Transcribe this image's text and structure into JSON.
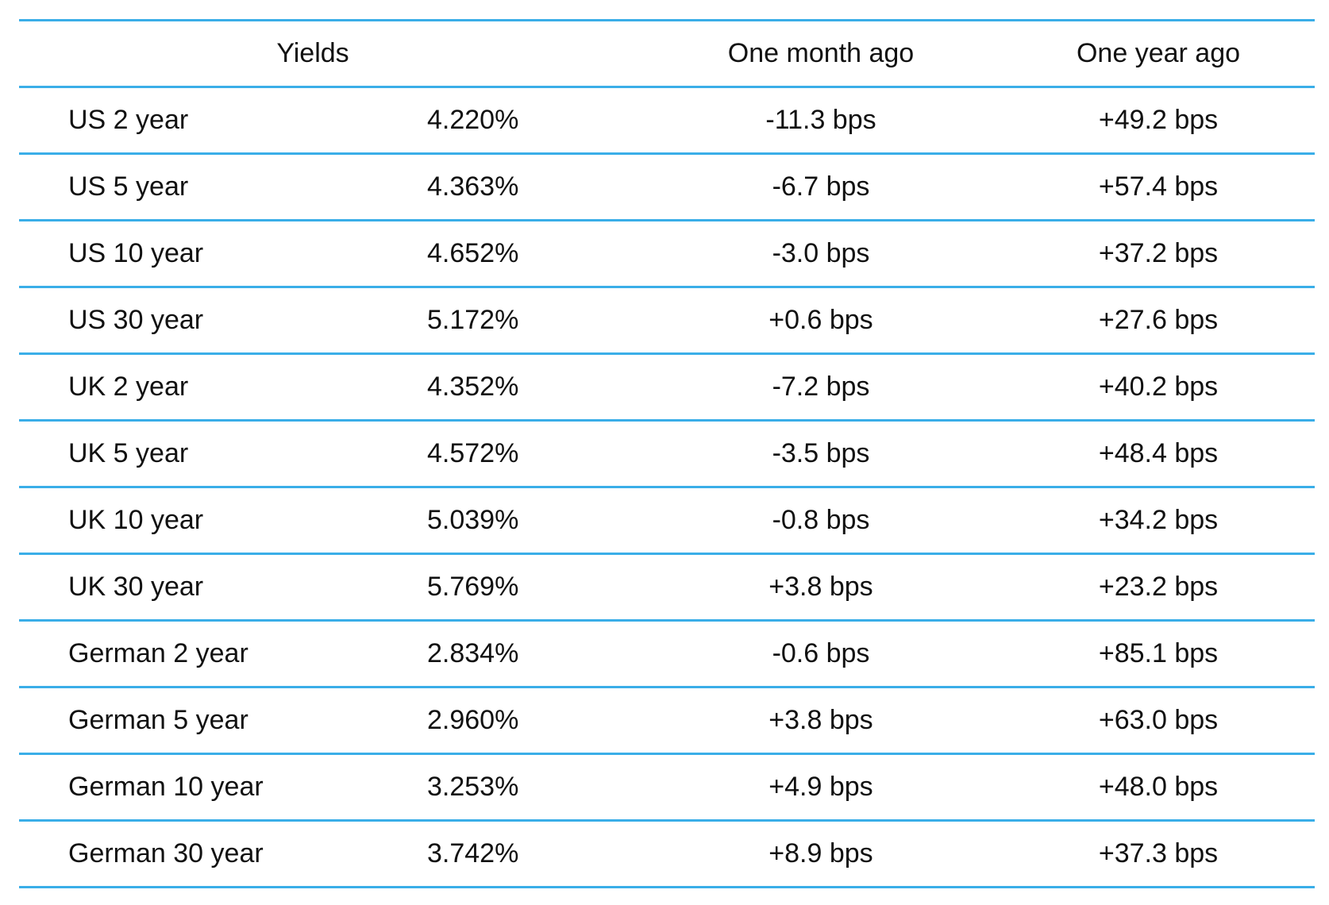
{
  "header": {
    "yields": "Yields",
    "one_month_ago": "One month ago",
    "one_year_ago": "One year ago"
  },
  "rows": [
    {
      "name": "US 2 year",
      "yield": "4.220%",
      "month": "-11.3 bps",
      "year": "+49.2 bps"
    },
    {
      "name": "US 5 year",
      "yield": "4.363%",
      "month": "-6.7 bps",
      "year": "+57.4 bps"
    },
    {
      "name": "US 10 year",
      "yield": "4.652%",
      "month": "-3.0 bps",
      "year": "+37.2 bps"
    },
    {
      "name": "US 30 year",
      "yield": "5.172%",
      "month": "+0.6 bps",
      "year": "+27.6 bps"
    },
    {
      "name": "UK 2 year",
      "yield": "4.352%",
      "month": "-7.2 bps",
      "year": "+40.2 bps"
    },
    {
      "name": "UK 5 year",
      "yield": "4.572%",
      "month": "-3.5 bps",
      "year": "+48.4 bps"
    },
    {
      "name": "UK 10 year",
      "yield": "5.039%",
      "month": "-0.8 bps",
      "year": "+34.2 bps"
    },
    {
      "name": "UK 30 year",
      "yield": "5.769%",
      "month": "+3.8 bps",
      "year": "+23.2 bps"
    },
    {
      "name": "German 2 year",
      "yield": "2.834%",
      "month": "-0.6 bps",
      "year": "+85.1 bps"
    },
    {
      "name": "German 5 year",
      "yield": "2.960%",
      "month": "+3.8 bps",
      "year": "+63.0 bps"
    },
    {
      "name": "German 10 year",
      "yield": "3.253%",
      "month": "+4.9 bps",
      "year": "+48.0 bps"
    },
    {
      "name": "German 30 year",
      "yield": "3.742%",
      "month": "+8.9 bps",
      "year": "+37.3 bps"
    }
  ],
  "colors": {
    "rule": "#3aaee8",
    "text": "#111111"
  }
}
